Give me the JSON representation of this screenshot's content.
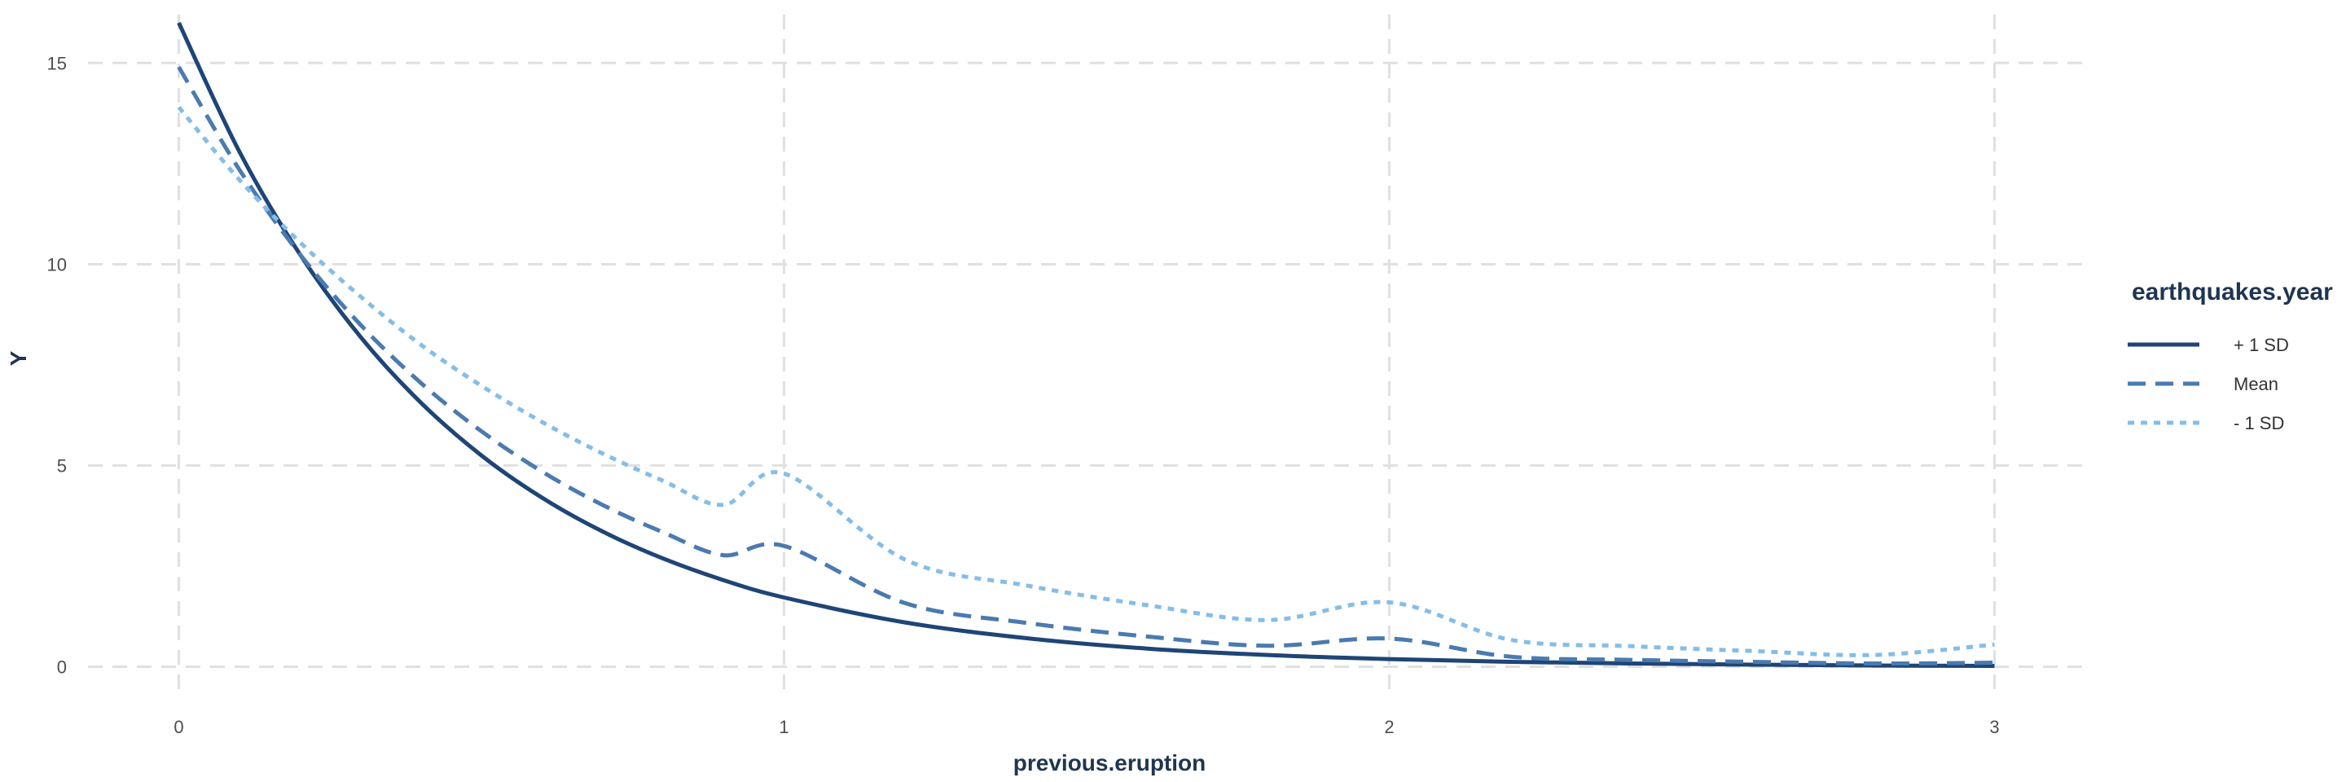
{
  "chart_data": {
    "type": "line",
    "title": "",
    "xlabel": "previous.eruption",
    "ylabel": "Y",
    "xlim": [
      -0.15,
      3.15
    ],
    "ylim": [
      -0.8,
      16.2
    ],
    "x_ticks": [
      0,
      1,
      2,
      3
    ],
    "y_ticks": [
      0,
      5,
      10,
      15
    ],
    "grid": true,
    "legend": {
      "title": "earthquakes.year",
      "placement": "right"
    },
    "series": [
      {
        "name": "+ 1 SD",
        "color": "#1f4577",
        "dash": "solid",
        "x": [
          0,
          0.1,
          0.2,
          0.3,
          0.4,
          0.5,
          0.6,
          0.7,
          0.8,
          0.9,
          1.0,
          1.2,
          1.4,
          1.6,
          1.8,
          2.0,
          2.2,
          2.4,
          2.6,
          2.8,
          3.0
        ],
        "y": [
          16.0,
          12.8,
          10.25,
          8.2,
          6.56,
          5.25,
          4.2,
          3.36,
          2.69,
          2.15,
          1.72,
          1.1,
          0.71,
          0.45,
          0.29,
          0.19,
          0.12,
          0.08,
          0.05,
          0.03,
          0.02
        ]
      },
      {
        "name": "Mean",
        "color": "#4a7ab0",
        "dash": "dashed",
        "x": [
          0,
          0.1,
          0.2,
          0.3,
          0.4,
          0.5,
          0.6,
          0.7,
          0.8,
          0.9,
          1.0,
          1.2,
          1.4,
          1.6,
          1.8,
          2.0,
          2.2,
          2.4,
          2.6,
          2.8,
          3.0
        ],
        "y": [
          14.9,
          12.35,
          10.25,
          8.5,
          7.05,
          5.85,
          4.85,
          4.02,
          3.34,
          2.77,
          3.0,
          1.58,
          1.09,
          0.75,
          0.52,
          0.7,
          0.25,
          0.17,
          0.12,
          0.08,
          0.1
        ]
      },
      {
        "name": "- 1 SD",
        "color": "#85bde8",
        "dash": "dotted",
        "x": [
          0,
          0.1,
          0.2,
          0.3,
          0.4,
          0.5,
          0.6,
          0.7,
          0.8,
          0.9,
          1.0,
          1.2,
          1.4,
          1.6,
          1.8,
          2.0,
          2.2,
          2.4,
          2.6,
          2.8,
          3.0
        ],
        "y": [
          13.9,
          12.1,
          10.55,
          9.2,
          8.0,
          6.98,
          6.08,
          5.3,
          4.62,
          4.02,
          4.8,
          2.66,
          2.02,
          1.53,
          1.16,
          1.6,
          0.67,
          0.51,
          0.39,
          0.29,
          0.55
        ]
      }
    ]
  }
}
